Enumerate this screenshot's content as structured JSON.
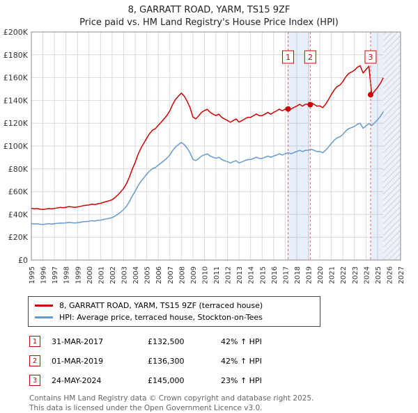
{
  "title": "8, GARRATT ROAD, YARM, TS15 9ZF",
  "subtitle": "Price paid vs. HM Land Registry's House Price Index (HPI)",
  "legend": [
    {
      "label": "8, GARRATT ROAD, YARM, TS15 9ZF (terraced house)",
      "color": "#cc0000"
    },
    {
      "label": "HPI: Average price, terraced house, Stockton-on-Tees",
      "color": "#6699cc"
    }
  ],
  "transactions": [
    {
      "num": "1",
      "date": "31-MAR-2017",
      "price": "£132,500",
      "hpi": "42% ↑ HPI",
      "year": 2017.25,
      "value": 132.5
    },
    {
      "num": "2",
      "date": "01-MAR-2019",
      "price": "£136,300",
      "hpi": "42% ↑ HPI",
      "year": 2019.17,
      "value": 136.3
    },
    {
      "num": "3",
      "date": "24-MAY-2024",
      "price": "£145,000",
      "hpi": "23% ↑ HPI",
      "year": 2024.4,
      "value": 145.0
    }
  ],
  "footer": [
    "Contains HM Land Registry data © Crown copyright and database right 2025.",
    "This data is licensed under the Open Government Licence v3.0."
  ],
  "chart_data": {
    "type": "line",
    "title": "8, GARRATT ROAD, YARM, TS15 9ZF — Price paid vs. HPI",
    "x_start": 1995,
    "x_end": 2027,
    "ylim": [
      0,
      200
    ],
    "y_tick_step": 20,
    "y_tick_labels": [
      "£0",
      "£20K",
      "£40K",
      "£60K",
      "£80K",
      "£100K",
      "£120K",
      "£140K",
      "£160K",
      "£180K",
      "£200K"
    ],
    "grid": true,
    "legend_position": "bottom",
    "hatch_start": 2025.5,
    "bands": [
      [
        2017.25,
        2019.17
      ],
      [
        2024.4,
        2025.5
      ]
    ],
    "sale_line_color": "#e06666",
    "sale_point_color": "#cc0000",
    "units": "GBP thousands",
    "series": [
      {
        "name": "price-paid",
        "label": "8, GARRATT ROAD, YARM, TS15 9ZF (terraced house)",
        "color": "#cc0000",
        "width": 1.5,
        "x0": 1995,
        "dx": 0.25,
        "values": [
          45.4,
          44.9,
          45.2,
          44.6,
          44.3,
          44.7,
          45.2,
          44.9,
          45.3,
          45.7,
          46.2,
          45.9,
          46.3,
          46.9,
          46.6,
          46.2,
          46.6,
          47.1,
          47.7,
          48.0,
          48.3,
          49.0,
          48.6,
          49.4,
          49.7,
          50.6,
          51.3,
          52.0,
          52.8,
          54.8,
          57.1,
          59.9,
          62.9,
          67.0,
          72.8,
          79.8,
          85.6,
          92.6,
          98.1,
          102.5,
          106.9,
          110.9,
          113.9,
          115.2,
          118.1,
          120.8,
          123.8,
          126.8,
          130.9,
          136.5,
          140.9,
          143.7,
          146.4,
          143.7,
          139.3,
          133.8,
          125.4,
          123.8,
          126.5,
          129.5,
          131.1,
          132.2,
          129.5,
          127.9,
          126.7,
          127.9,
          125.2,
          123.7,
          122.4,
          120.8,
          122.4,
          123.7,
          121.0,
          122.3,
          123.8,
          125.1,
          125.2,
          126.5,
          128.1,
          126.5,
          126.7,
          127.9,
          129.5,
          127.9,
          129.5,
          130.8,
          132.3,
          130.8,
          132.5,
          133.6,
          132.3,
          133.8,
          135.0,
          136.6,
          135.0,
          136.6,
          136.7,
          137.9,
          136.6,
          135.0,
          135.2,
          133.6,
          136.6,
          140.7,
          145.1,
          149.2,
          152.2,
          153.5,
          156.5,
          160.6,
          163.6,
          164.9,
          166.4,
          169.1,
          170.4,
          164.0,
          167.0,
          170.0,
          145.0,
          148.1,
          151.3,
          155.0,
          159.9
        ]
      },
      {
        "name": "hpi",
        "label": "HPI: Average price, terraced house, Stockton-on-Tees",
        "color": "#6699cc",
        "width": 1.5,
        "x0": 1995,
        "dx": 0.25,
        "values": [
          32.0,
          31.6,
          31.8,
          31.4,
          31.2,
          31.5,
          31.8,
          31.6,
          31.9,
          32.2,
          32.5,
          32.3,
          32.6,
          33.0,
          32.8,
          32.5,
          32.8,
          33.2,
          33.6,
          33.8,
          34.0,
          34.5,
          34.2,
          34.8,
          35.0,
          35.6,
          36.1,
          36.6,
          37.2,
          38.6,
          40.2,
          42.2,
          44.3,
          47.2,
          51.3,
          56.2,
          60.3,
          65.2,
          69.1,
          72.2,
          75.3,
          78.1,
          80.2,
          81.1,
          83.2,
          85.1,
          87.2,
          89.3,
          92.2,
          96.1,
          99.2,
          101.2,
          103.1,
          101.2,
          98.1,
          94.2,
          88.3,
          87.2,
          89.1,
          91.2,
          92.3,
          93.1,
          91.2,
          90.1,
          89.2,
          90.1,
          88.2,
          87.1,
          86.2,
          85.1,
          86.2,
          87.1,
          85.2,
          86.1,
          87.2,
          88.1,
          88.2,
          89.1,
          90.2,
          89.1,
          89.2,
          90.1,
          91.2,
          90.1,
          91.2,
          92.1,
          93.2,
          92.1,
          93.3,
          94.1,
          93.2,
          94.2,
          95.1,
          96.2,
          95.1,
          96.2,
          96.3,
          97.1,
          96.2,
          95.1,
          95.2,
          94.1,
          96.2,
          99.1,
          102.2,
          105.1,
          107.2,
          108.1,
          110.2,
          113.1,
          115.2,
          116.1,
          117.2,
          119.1,
          120.0,
          115.5,
          117.6,
          119.7,
          117.9,
          120.4,
          123.0,
          126.0,
          130.0
        ]
      }
    ]
  }
}
